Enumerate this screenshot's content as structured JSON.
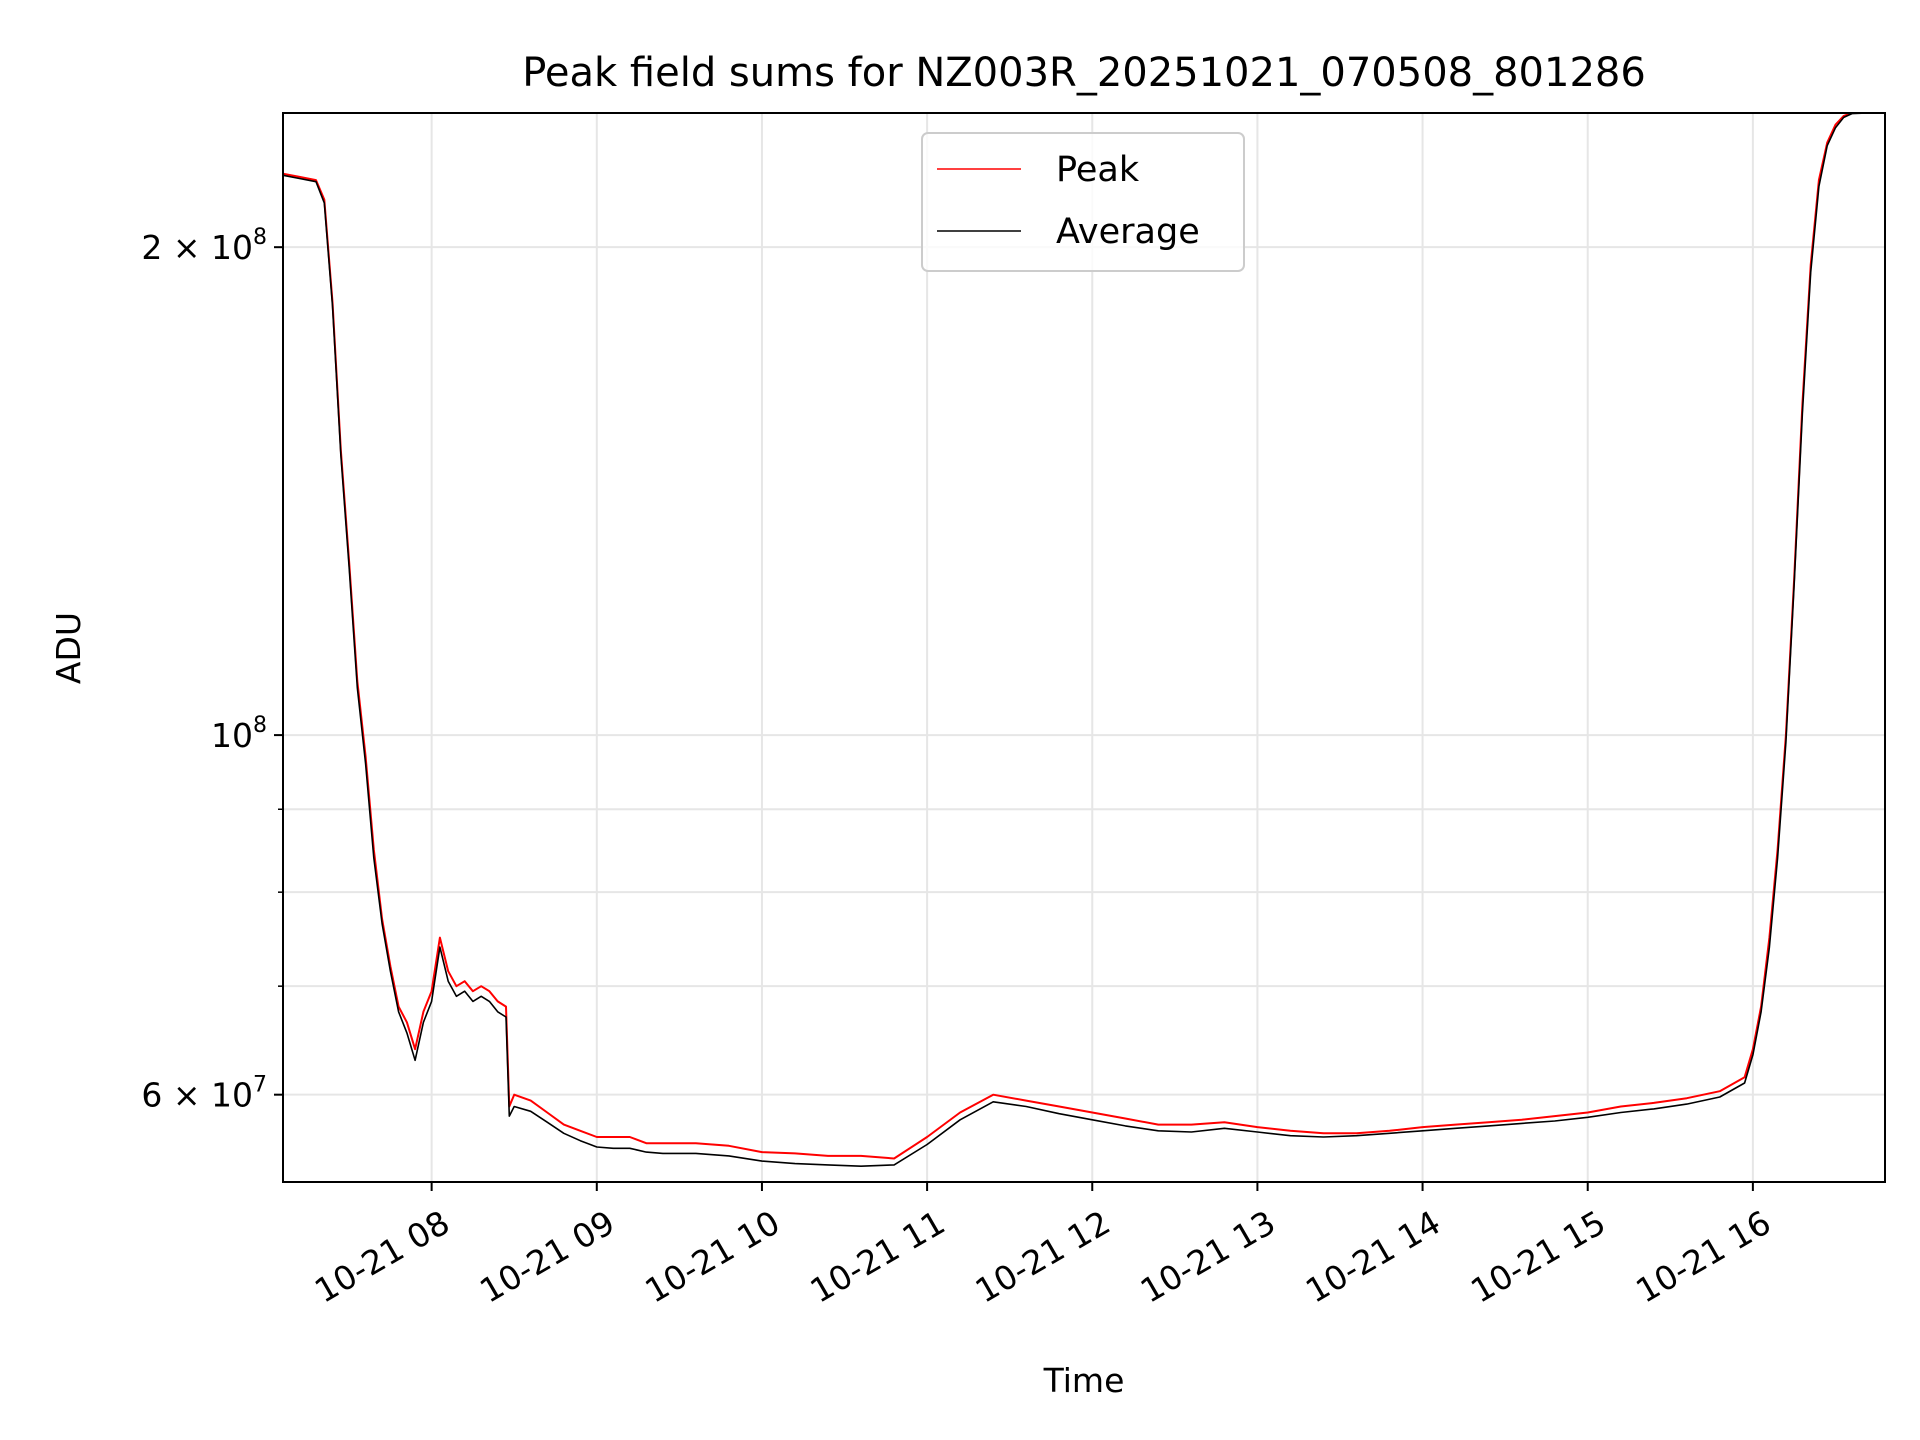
{
  "chart_data": {
    "type": "line",
    "title": "Peak field sums for NZ003R_20251021_070508_801286",
    "xlabel": "Time",
    "ylabel": "ADU",
    "yscale": "log",
    "x_unit": "hour",
    "xlim": [
      7.1,
      16.8
    ],
    "ylim": [
      53000000,
      242000000
    ],
    "grid": true,
    "legend_position": "upper center",
    "x_ticks": [
      {
        "value": 8,
        "label": "10-21 08"
      },
      {
        "value": 9,
        "label": "10-21 09"
      },
      {
        "value": 10,
        "label": "10-21 10"
      },
      {
        "value": 11,
        "label": "10-21 11"
      },
      {
        "value": 12,
        "label": "10-21 12"
      },
      {
        "value": 13,
        "label": "10-21 13"
      },
      {
        "value": 14,
        "label": "10-21 14"
      },
      {
        "value": 15,
        "label": "10-21 15"
      },
      {
        "value": 16,
        "label": "10-21 16"
      }
    ],
    "y_major_ticks": [
      {
        "value": 60000000,
        "base": "6",
        "exp": "7"
      },
      {
        "value": 100000000,
        "base": "",
        "exp": "8"
      },
      {
        "value": 200000000,
        "base": "2",
        "exp": "8"
      }
    ],
    "y_minor_ticks": [
      70000000,
      80000000,
      90000000
    ],
    "series": [
      {
        "name": "Peak",
        "color": "#ff0000",
        "x": [
          7.1,
          7.2,
          7.3,
          7.35,
          7.4,
          7.45,
          7.5,
          7.55,
          7.6,
          7.65,
          7.7,
          7.75,
          7.8,
          7.85,
          7.9,
          7.95,
          8.0,
          8.05,
          8.1,
          8.15,
          8.2,
          8.25,
          8.3,
          8.35,
          8.4,
          8.45,
          8.47,
          8.5,
          8.6,
          8.7,
          8.8,
          8.9,
          9.0,
          9.1,
          9.2,
          9.3,
          9.4,
          9.5,
          9.6,
          9.8,
          10.0,
          10.2,
          10.4,
          10.6,
          10.8,
          11.0,
          11.2,
          11.4,
          11.6,
          11.8,
          12.0,
          12.2,
          12.4,
          12.6,
          12.8,
          13.0,
          13.2,
          13.4,
          13.6,
          13.8,
          14.0,
          14.2,
          14.4,
          14.6,
          14.8,
          15.0,
          15.2,
          15.4,
          15.6,
          15.8,
          15.95,
          16.0,
          16.05,
          16.1,
          16.15,
          16.2,
          16.25,
          16.3,
          16.35,
          16.4,
          16.45,
          16.5,
          16.55,
          16.6,
          16.7,
          16.8
        ],
        "y": [
          222000000,
          221000000,
          220000000,
          214000000,
          185000000,
          150000000,
          128000000,
          108000000,
          97000000,
          85000000,
          77000000,
          72000000,
          68000000,
          66500000,
          64000000,
          67500000,
          69500000,
          75000000,
          71500000,
          70000000,
          70500000,
          69500000,
          70000000,
          69500000,
          68500000,
          68000000,
          59000000,
          60000000,
          59500000,
          58500000,
          57500000,
          57000000,
          56500000,
          56500000,
          56500000,
          56000000,
          56000000,
          56000000,
          56000000,
          55800000,
          55300000,
          55200000,
          55000000,
          55000000,
          54800000,
          56500000,
          58500000,
          60000000,
          59500000,
          59000000,
          58500000,
          58000000,
          57500000,
          57500000,
          57700000,
          57300000,
          57000000,
          56800000,
          56800000,
          57000000,
          57300000,
          57500000,
          57700000,
          57900000,
          58200000,
          58500000,
          59000000,
          59300000,
          59700000,
          60300000,
          61500000,
          64000000,
          68000000,
          75000000,
          85000000,
          100000000,
          125000000,
          160000000,
          195000000,
          220000000,
          232000000,
          238000000,
          241000000,
          242000000,
          242000000,
          242000000
        ]
      },
      {
        "name": "Average",
        "color": "#000000",
        "x": [
          7.1,
          7.2,
          7.3,
          7.35,
          7.4,
          7.45,
          7.5,
          7.55,
          7.6,
          7.65,
          7.7,
          7.75,
          7.8,
          7.85,
          7.9,
          7.95,
          8.0,
          8.05,
          8.1,
          8.15,
          8.2,
          8.25,
          8.3,
          8.35,
          8.4,
          8.45,
          8.47,
          8.5,
          8.6,
          8.7,
          8.8,
          8.9,
          9.0,
          9.1,
          9.2,
          9.3,
          9.4,
          9.5,
          9.6,
          9.8,
          10.0,
          10.2,
          10.4,
          10.6,
          10.8,
          11.0,
          11.2,
          11.4,
          11.6,
          11.8,
          12.0,
          12.2,
          12.4,
          12.6,
          12.8,
          13.0,
          13.2,
          13.4,
          13.6,
          13.8,
          14.0,
          14.2,
          14.4,
          14.6,
          14.8,
          15.0,
          15.2,
          15.4,
          15.6,
          15.8,
          15.95,
          16.0,
          16.05,
          16.1,
          16.15,
          16.2,
          16.25,
          16.3,
          16.35,
          16.4,
          16.45,
          16.5,
          16.55,
          16.6,
          16.7,
          16.8
        ],
        "y": [
          221500000,
          220500000,
          219500000,
          213000000,
          184000000,
          149000000,
          127000000,
          107000000,
          96000000,
          84000000,
          76500000,
          71500000,
          67500000,
          65500000,
          63000000,
          66500000,
          68500000,
          74000000,
          70500000,
          69000000,
          69500000,
          68500000,
          69000000,
          68500000,
          67500000,
          67000000,
          58200000,
          59000000,
          58600000,
          57700000,
          56800000,
          56200000,
          55700000,
          55600000,
          55600000,
          55300000,
          55200000,
          55200000,
          55200000,
          55000000,
          54600000,
          54400000,
          54300000,
          54200000,
          54300000,
          55900000,
          57900000,
          59400000,
          59000000,
          58400000,
          57900000,
          57400000,
          57000000,
          56900000,
          57200000,
          56900000,
          56600000,
          56500000,
          56600000,
          56800000,
          57000000,
          57200000,
          57400000,
          57600000,
          57800000,
          58100000,
          58500000,
          58800000,
          59200000,
          59800000,
          61000000,
          63500000,
          67500000,
          74000000,
          84000000,
          99000000,
          124000000,
          158000000,
          193000000,
          218000000,
          231000000,
          237000000,
          240500000,
          241800000,
          242000000,
          242000000
        ]
      }
    ]
  }
}
